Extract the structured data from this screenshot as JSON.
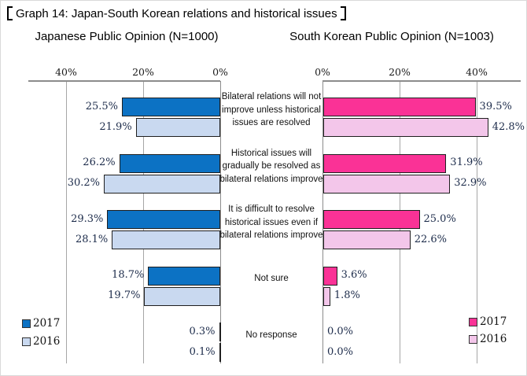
{
  "figure": {
    "title": "Graph 14: Japan-South Korean relations and historical issues",
    "title_bracket_open": "【",
    "title_bracket_close": "】"
  },
  "colors": {
    "axis_line": "#8c8c8c",
    "gridline": "#a6a6a6",
    "bar_border": "#1f1f1f",
    "value_text": "#1c2b4a",
    "category_text": "#111111",
    "japan_2017": "#0c72c4",
    "japan_2016": "#c9d9f0",
    "korea_2017": "#fa3296",
    "korea_2016": "#f3c6ea"
  },
  "chart_data": [
    {
      "type": "bar",
      "orientation": "horizontal, bars extend left from 0% axis on right",
      "title": "Japanese Public Opinion (N=1000)",
      "axis": {
        "unit": "%",
        "range": [
          0,
          50
        ],
        "ticks": [
          {
            "label": "0%",
            "value": 0
          },
          {
            "label": "20%",
            "value": 20
          },
          {
            "label": "40%",
            "value": 40
          }
        ],
        "gridlines": true
      },
      "categories": [
        "Bilateral relations will not\nimprove unless historical\nissues are resolved",
        "Historical issues will\ngradually be resolved as\nbilateral relations improve",
        "It is difficult to resolve\nhistorical issues even if\nbilateral relations improve",
        "Not sure",
        "No response"
      ],
      "series": [
        {
          "name": "2017",
          "color": "#0c72c4",
          "values": [
            25.5,
            26.2,
            29.3,
            18.7,
            0.3
          ],
          "labels": [
            "25.5%",
            "26.2%",
            "29.3%",
            "18.7%",
            "0.3%"
          ]
        },
        {
          "name": "2016",
          "color": "#c9d9f0",
          "values": [
            21.9,
            30.2,
            28.1,
            19.7,
            0.1
          ],
          "labels": [
            "21.9%",
            "30.2%",
            "28.1%",
            "19.7%",
            "0.1%"
          ]
        }
      ],
      "legend": {
        "position": "bottom-left",
        "labels": [
          "2017",
          "2016"
        ]
      }
    },
    {
      "type": "bar",
      "orientation": "horizontal, bars extend right from 0% axis on left",
      "title": "South Korean Public Opinion (N=1003)",
      "axis": {
        "unit": "%",
        "range": [
          0,
          50
        ],
        "ticks": [
          {
            "label": "0%",
            "value": 0
          },
          {
            "label": "20%",
            "value": 20
          },
          {
            "label": "40%",
            "value": 40
          }
        ],
        "gridlines": true
      },
      "categories": [
        "Bilateral relations will not\nimprove unless historical\nissues are resolved",
        "Historical issues will\ngradually be resolved as\nbilateral relations improve",
        "It is difficult to resolve\nhistorical issues even if\nbilateral relations improve",
        "Not sure",
        "No response"
      ],
      "series": [
        {
          "name": "2017",
          "color": "#fa3296",
          "values": [
            39.5,
            31.9,
            25.0,
            3.6,
            0.0
          ],
          "labels": [
            "39.5%",
            "31.9%",
            "25.0%",
            "3.6%",
            "0.0%"
          ]
        },
        {
          "name": "2016",
          "color": "#f3c6ea",
          "values": [
            42.8,
            32.9,
            22.6,
            1.8,
            0.0
          ],
          "labels": [
            "42.8%",
            "32.9%",
            "22.6%",
            "1.8%",
            "0.0%"
          ]
        }
      ],
      "legend": {
        "position": "bottom-right",
        "labels": [
          "2017",
          "2016"
        ]
      }
    }
  ]
}
